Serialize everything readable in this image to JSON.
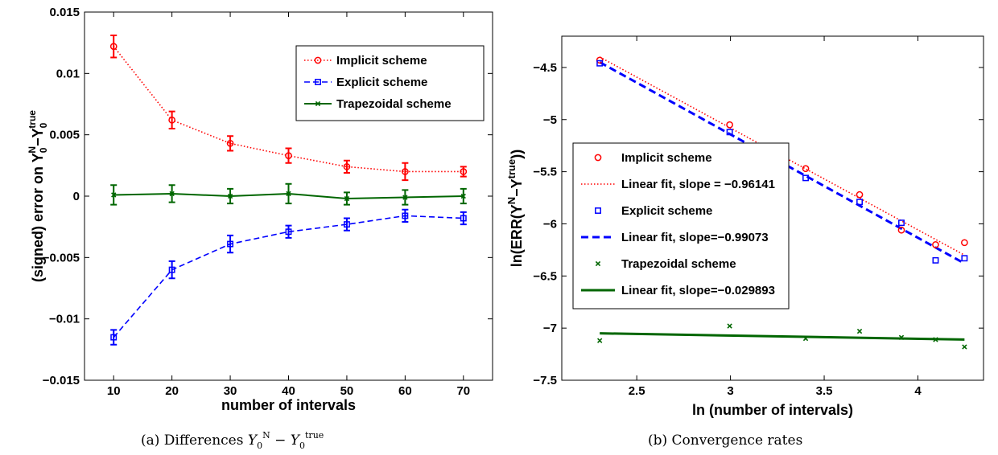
{
  "colors": {
    "implicit": "#ff0000",
    "explicit": "#0000ff",
    "trapezoidal": "#006600"
  },
  "captions": {
    "a_prefix": "(a)  Differences ",
    "b": "(b)  Convergence rates"
  },
  "chart_data": [
    {
      "type": "line",
      "xlabel": "number of intervals",
      "ylabel_prefix": "(signed) error on Y",
      "x": [
        10,
        20,
        30,
        40,
        50,
        60,
        70
      ],
      "xlim": [
        5,
        75
      ],
      "ylim": [
        -0.015,
        0.015
      ],
      "xticks": [
        10,
        20,
        30,
        40,
        50,
        60,
        70
      ],
      "yticks": [
        -0.015,
        -0.01,
        -0.005,
        0,
        0.005,
        0.01,
        0.015
      ],
      "ytick_labels": [
        "-0.015",
        "-0.01",
        "-0.005",
        "0",
        "0.005",
        "0.01",
        "0.015"
      ],
      "legend_position": "top-right",
      "series": [
        {
          "name": "Implicit scheme",
          "key": "implicit",
          "marker": "circle",
          "dash": "dotted",
          "values": [
            0.0122,
            0.0062,
            0.0043,
            0.0033,
            0.0024,
            0.002,
            0.002
          ],
          "errors": [
            0.0009,
            0.0007,
            0.0006,
            0.0006,
            0.0005,
            0.0007,
            0.0004
          ]
        },
        {
          "name": "Explicit scheme",
          "key": "explicit",
          "marker": "square",
          "dash": "dashed",
          "values": [
            -0.0115,
            -0.006,
            -0.0039,
            -0.0029,
            -0.0023,
            -0.0016,
            -0.0018
          ],
          "errors": [
            0.0006,
            0.0007,
            0.0007,
            0.0005,
            0.0005,
            0.0005,
            0.0005
          ]
        },
        {
          "name": "Trapezoidal scheme",
          "key": "trapezoidal",
          "marker": "x",
          "dash": "solid",
          "values": [
            0.0001,
            0.0002,
            0.0,
            0.0002,
            -0.0002,
            -0.0001,
            0.0
          ],
          "errors": [
            0.0008,
            0.0007,
            0.0006,
            0.0008,
            0.0005,
            0.0006,
            0.0006
          ]
        }
      ]
    },
    {
      "type": "scatter",
      "xlabel": "ln (number of intervals)",
      "ylabel_prefix": "ln(ERR(Y",
      "ylabel_suffix": "))",
      "x": [
        2.3026,
        2.9957,
        3.4012,
        3.6889,
        3.912,
        4.0943,
        4.2485
      ],
      "xlim": [
        2.1,
        4.35
      ],
      "ylim": [
        -7.5,
        -4.2
      ],
      "xticks": [
        2.5,
        3,
        3.5,
        4
      ],
      "xtick_labels": [
        "2.5",
        "3",
        "3.5",
        "4"
      ],
      "yticks": [
        -7.5,
        -7,
        -6.5,
        -6,
        -5.5,
        -5,
        -4.5
      ],
      "ytick_labels": [
        "-7.5",
        "-7",
        "-6.5",
        "-6",
        "-5.5",
        "-5",
        "-4.5"
      ],
      "legend_position": "center-left",
      "series": [
        {
          "name": "Implicit scheme",
          "key": "implicit",
          "marker": "circle",
          "values": [
            -4.43,
            -5.05,
            -5.47,
            -5.72,
            -6.06,
            -6.2,
            -6.18
          ]
        },
        {
          "name": "Linear fit, slope = −0.96141",
          "key": "implicit",
          "fit": true,
          "dash": "dotted",
          "x": [
            2.3026,
            4.2485
          ],
          "values": [
            -4.4,
            -6.3
          ]
        },
        {
          "name": "Explicit scheme",
          "key": "explicit",
          "marker": "square",
          "values": [
            -4.46,
            -5.12,
            -5.56,
            -5.79,
            -5.99,
            -6.35,
            -6.33
          ]
        },
        {
          "name": "Linear fit, slope=−0.99073",
          "key": "explicit",
          "fit": true,
          "dash": "dashed",
          "x": [
            2.3026,
            4.2485
          ],
          "values": [
            -4.45,
            -6.38
          ]
        },
        {
          "name": "Trapezoidal scheme",
          "key": "trapezoidal",
          "marker": "x",
          "values": [
            -7.12,
            -6.98,
            -7.1,
            -7.03,
            -7.09,
            -7.11,
            -7.18
          ]
        },
        {
          "name": "Linear fit, slope=−0.029893",
          "key": "trapezoidal",
          "fit": true,
          "dash": "solid",
          "x": [
            2.3026,
            4.2485
          ],
          "values": [
            -7.05,
            -7.11
          ]
        }
      ]
    }
  ]
}
